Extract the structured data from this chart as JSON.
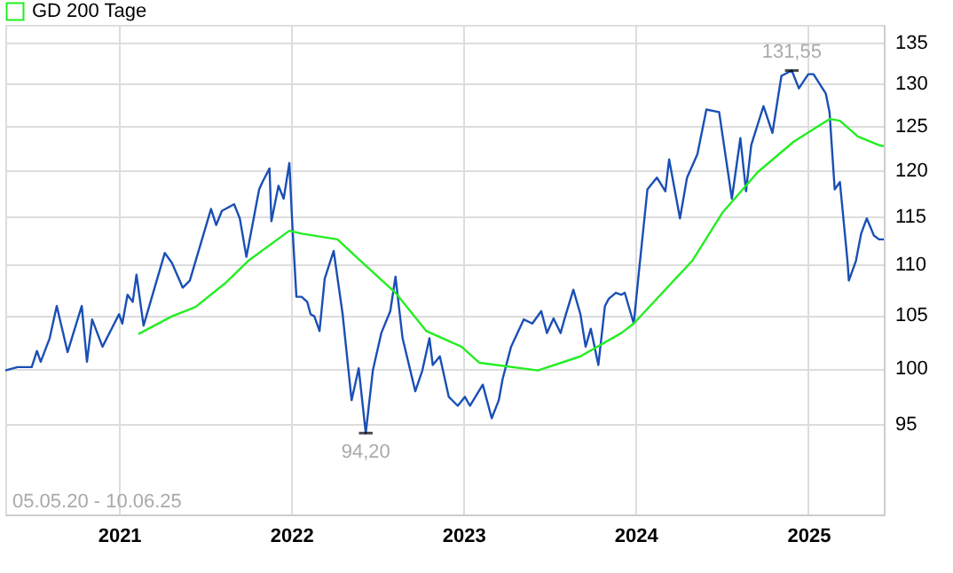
{
  "chart_data": {
    "type": "line",
    "log": "y",
    "grid": true,
    "legend": "top left",
    "line_style": "solid",
    "xlim": [
      "2020-05-05",
      "2025-06-10"
    ],
    "xticks": [
      "2021",
      "2022",
      "2023",
      "2024",
      "2025"
    ],
    "ylim": [
      87.4,
      137.2
    ],
    "yticks": [
      95,
      100,
      105,
      110,
      115,
      120,
      125,
      130,
      135
    ],
    "annotations": [
      {
        "text": "131,55",
        "x": "2024-11-27",
        "y": 131.55
      },
      {
        "text": "94,20",
        "x": "2022-06-08",
        "y": 94.2
      },
      "05.05.20 - 10.06.25"
    ],
    "series": [
      {
        "color": "#1a4fb5",
        "x": [
          "2020-05-05",
          "2020-05-31",
          "2020-06-30",
          "2020-07-11",
          "2020-07-19",
          "2020-08-07",
          "2020-08-22",
          "2020-09-14",
          "2020-10-14",
          "2020-10-25",
          "2020-11-05",
          "2020-11-27",
          "2021-01-01",
          "2021-01-08",
          "2021-01-19",
          "2021-01-30",
          "2021-02-07",
          "2021-02-22",
          "2021-04-08",
          "2021-04-23",
          "2021-05-16",
          "2021-05-31",
          "2021-07-15",
          "2021-07-26",
          "2021-08-07",
          "2021-09-02",
          "2021-09-14",
          "2021-09-28",
          "2021-10-25",
          "2021-11-01",
          "2021-11-16",
          "2021-11-20",
          "2021-12-05",
          "2021-12-16",
          "2021-12-28",
          "2022-01-04",
          "2022-01-12",
          "2022-01-23",
          "2022-02-04",
          "2022-02-11",
          "2022-02-19",
          "2022-03-02",
          "2022-03-13",
          "2022-04-01",
          "2022-04-20",
          "2022-05-09",
          "2022-05-24",
          "2022-06-08",
          "2022-06-23",
          "2022-07-11",
          "2022-07-30",
          "2022-08-10",
          "2022-08-25",
          "2022-09-21",
          "2022-10-06",
          "2022-10-21",
          "2022-10-28",
          "2022-11-12",
          "2022-12-01",
          "2022-12-20",
          "2023-01-04",
          "2023-01-15",
          "2023-02-11",
          "2023-03-02",
          "2023-03-17",
          "2023-03-25",
          "2023-04-12",
          "2023-05-09",
          "2023-05-27",
          "2023-06-15",
          "2023-06-27",
          "2023-07-11",
          "2023-07-26",
          "2023-08-03",
          "2023-08-22",
          "2023-09-06",
          "2023-09-17",
          "2023-09-28",
          "2023-10-14",
          "2023-10-28",
          "2023-11-05",
          "2023-11-20",
          "2023-12-02",
          "2023-12-09",
          "2023-12-28",
          "2024-01-08",
          "2024-01-26",
          "2024-02-15",
          "2024-03-04",
          "2024-03-12",
          "2024-04-04",
          "2024-04-19",
          "2024-05-11",
          "2024-05-30",
          "2024-06-26",
          "2024-07-23",
          "2024-08-10",
          "2024-08-22",
          "2024-09-02",
          "2024-09-28",
          "2024-10-17",
          "2024-11-05",
          "2024-11-27",
          "2024-12-12",
          "2025-01-01",
          "2025-01-12",
          "2025-02-07",
          "2025-02-15",
          "2025-02-26",
          "2025-03-09",
          "2025-03-25",
          "2025-03-28",
          "2025-04-12",
          "2025-04-23",
          "2025-05-05",
          "2025-05-20",
          "2025-05-31",
          "2025-06-10"
        ],
        "values": [
          99.8,
          100.1,
          100.1,
          101.6,
          100.6,
          102.8,
          105.9,
          101.5,
          105.9,
          100.6,
          104.6,
          102.0,
          105.1,
          104.2,
          107.0,
          106.3,
          109.0,
          104.0,
          111.2,
          110.2,
          107.7,
          108.4,
          115.8,
          114.1,
          115.6,
          116.3,
          114.8,
          110.8,
          117.9,
          118.7,
          120.2,
          114.5,
          118.3,
          116.9,
          120.8,
          113.5,
          106.8,
          106.8,
          106.3,
          105.1,
          104.9,
          103.5,
          108.6,
          111.4,
          105.1,
          97.1,
          100.0,
          94.2,
          99.8,
          103.3,
          105.4,
          108.8,
          102.8,
          97.9,
          99.8,
          102.8,
          100.3,
          101.1,
          97.4,
          96.6,
          97.4,
          96.6,
          98.5,
          95.5,
          97.1,
          99.0,
          102.0,
          104.6,
          104.2,
          105.4,
          103.3,
          104.7,
          103.3,
          104.6,
          107.5,
          105.1,
          102.0,
          103.7,
          100.3,
          105.9,
          106.6,
          107.2,
          107.0,
          107.2,
          104.2,
          109.3,
          117.9,
          119.2,
          117.7,
          121.2,
          114.8,
          119.2,
          121.8,
          126.9,
          126.6,
          116.9,
          123.6,
          117.7,
          122.8,
          127.3,
          124.2,
          130.9,
          131.55,
          129.4,
          131.1,
          131.1,
          128.8,
          126.6,
          117.9,
          118.7,
          110.4,
          108.4,
          110.4,
          113.2,
          114.8,
          113.0,
          112.6,
          112.6
        ]
      },
      {
        "name": "GD 200 Tage",
        "color": "#22ee22",
        "x": [
          "2021-02-11",
          "2021-04-23",
          "2021-06-12",
          "2021-08-13",
          "2021-10-02",
          "2021-12-28",
          "2022-01-23",
          "2022-04-09",
          "2022-05-28",
          "2022-08-10",
          "2022-10-14",
          "2022-12-28",
          "2023-02-04",
          "2023-06-08",
          "2023-09-06",
          "2023-12-02",
          "2023-12-28",
          "2024-04-30",
          "2024-07-03",
          "2024-09-16",
          "2024-12-01",
          "2025-02-15",
          "2025-03-09",
          "2025-04-16",
          "2025-05-31",
          "2025-06-10"
        ],
        "values": [
          103.2,
          104.9,
          105.8,
          108.1,
          110.4,
          113.5,
          113.2,
          112.6,
          110.4,
          107.2,
          103.5,
          102.0,
          100.5,
          99.8,
          101.1,
          103.3,
          104.2,
          110.4,
          115.4,
          119.8,
          123.2,
          125.8,
          125.6,
          123.8,
          122.8,
          122.7
        ]
      }
    ]
  }
}
